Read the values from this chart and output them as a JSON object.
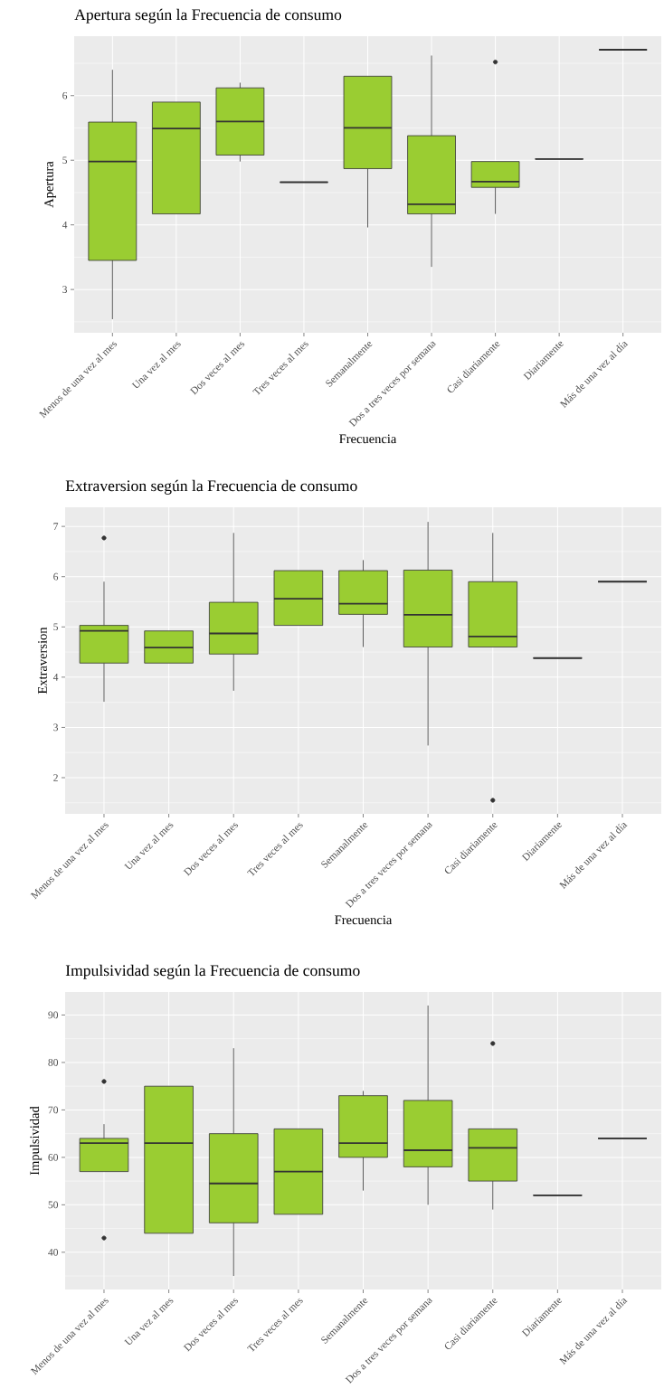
{
  "chart_data": [
    {
      "type": "box",
      "title": "Apertura según la Frecuencia de consumo",
      "xlabel": "Frecuencia",
      "ylabel": "Apertura",
      "categories": [
        "Menos de una vez al mes",
        "Una vez al mes",
        "Dos veces al mes",
        "Tres veces al mes",
        "Semanalmente",
        "Dos a tres veces por semana",
        "Casi diariamente",
        "Diariamente",
        "Más de una vez al día"
      ],
      "boxes": [
        {
          "low": 2.54,
          "q1": 3.45,
          "median": 4.98,
          "q3": 5.59,
          "high": 6.4
        },
        {
          "low": 4.17,
          "q1": 4.17,
          "median": 5.49,
          "q3": 5.9,
          "high": 5.9
        },
        {
          "low": 4.98,
          "q1": 5.08,
          "median": 5.6,
          "q3": 6.12,
          "high": 6.2
        },
        {
          "low": 4.66,
          "q1": 4.66,
          "median": 4.66,
          "q3": 4.66,
          "high": 4.66
        },
        {
          "low": 3.96,
          "q1": 4.87,
          "median": 5.5,
          "q3": 6.3,
          "high": 6.3
        },
        {
          "low": 3.35,
          "q1": 4.17,
          "median": 4.32,
          "q3": 5.38,
          "high": 6.62
        },
        {
          "low": 4.17,
          "q1": 4.58,
          "median": 4.67,
          "q3": 4.98,
          "high": 4.98,
          "outliers": [
            6.52
          ]
        },
        {
          "low": 5.02,
          "q1": 5.02,
          "median": 5.02,
          "q3": 5.02,
          "high": 5.02
        },
        {
          "low": 6.71,
          "q1": 6.71,
          "median": 6.71,
          "q3": 6.71,
          "high": 6.71
        }
      ],
      "colors": [
        "#9acd32",
        "#9acd32",
        "#9acd32",
        "#333333",
        "#9acd32",
        "#9acd32",
        "#9acd32",
        "#333333",
        "#333333"
      ],
      "ylim": [
        2.33,
        6.92
      ],
      "yticks": [
        3,
        4,
        5,
        6
      ],
      "grid": true
    },
    {
      "type": "box",
      "title": "Extraversion según la Frecuencia de consumo",
      "xlabel": "Frecuencia",
      "ylabel": "Extraversion",
      "categories": [
        "Menos de una vez al mes",
        "Una vez al mes",
        "Dos veces al mes",
        "Tres veces al mes",
        "Semanalmente",
        "Dos a tres veces por semana",
        "Casi diariamente",
        "Diariamente",
        "Más de una vez al día"
      ],
      "boxes": [
        {
          "low": 3.51,
          "q1": 4.28,
          "median": 4.92,
          "q3": 5.03,
          "high": 5.9,
          "outliers": [
            6.77
          ]
        },
        {
          "low": 4.28,
          "q1": 4.28,
          "median": 4.59,
          "q3": 4.92,
          "high": 4.92
        },
        {
          "low": 3.73,
          "q1": 4.46,
          "median": 4.87,
          "q3": 5.49,
          "high": 6.87
        },
        {
          "low": 5.03,
          "q1": 5.03,
          "median": 5.56,
          "q3": 6.12,
          "high": 6.12
        },
        {
          "low": 4.6,
          "q1": 5.25,
          "median": 5.46,
          "q3": 6.12,
          "high": 6.33
        },
        {
          "low": 2.64,
          "q1": 4.6,
          "median": 5.24,
          "q3": 6.13,
          "high": 7.09
        },
        {
          "low": 4.6,
          "q1": 4.6,
          "median": 4.81,
          "q3": 5.9,
          "high": 6.87,
          "outliers": [
            1.55
          ]
        },
        {
          "low": 4.38,
          "q1": 4.38,
          "median": 4.38,
          "q3": 4.38,
          "high": 4.38
        },
        {
          "low": 5.9,
          "q1": 5.9,
          "median": 5.9,
          "q3": 5.9,
          "high": 5.9
        }
      ],
      "colors": [
        "#9acd32",
        "#9acd32",
        "#9acd32",
        "#9acd32",
        "#9acd32",
        "#9acd32",
        "#9acd32",
        "#333333",
        "#333333"
      ],
      "ylim": [
        1.28,
        7.38
      ],
      "yticks": [
        2,
        3,
        4,
        5,
        6,
        7
      ],
      "grid": true
    },
    {
      "type": "box",
      "title": "Impulsividad según la Frecuencia de consumo",
      "ylabel": "Impulsividad",
      "categories": [
        "Menos de una vez al mes",
        "Una vez al mes",
        "Dos veces al mes",
        "Tres veces al mes",
        "Semanalmente",
        "Dos a tres veces por semana",
        "Casi diariamente",
        "Diariamente",
        "Más de una vez al día"
      ],
      "boxes": [
        {
          "low": 57,
          "q1": 57,
          "median": 63,
          "q3": 64,
          "high": 67,
          "outliers": [
            76,
            43
          ]
        },
        {
          "low": 44,
          "q1": 44,
          "median": 63,
          "q3": 75,
          "high": 75
        },
        {
          "low": 35,
          "q1": 46.2,
          "median": 54.5,
          "q3": 65,
          "high": 83
        },
        {
          "low": 48,
          "q1": 48,
          "median": 57,
          "q3": 66,
          "high": 66
        },
        {
          "low": 53,
          "q1": 60,
          "median": 63,
          "q3": 73,
          "high": 74
        },
        {
          "low": 50,
          "q1": 58,
          "median": 61.5,
          "q3": 72,
          "high": 92
        },
        {
          "low": 49,
          "q1": 55,
          "median": 62,
          "q3": 66,
          "high": 66,
          "outliers": [
            84
          ]
        },
        {
          "low": 52,
          "q1": 52,
          "median": 52,
          "q3": 52,
          "high": 52
        },
        {
          "low": 64,
          "q1": 64,
          "median": 64,
          "q3": 64,
          "high": 64
        }
      ],
      "colors": [
        "#9acd32",
        "#9acd32",
        "#9acd32",
        "#9acd32",
        "#9acd32",
        "#9acd32",
        "#9acd32",
        "#333333",
        "#333333"
      ],
      "ylim": [
        32.15,
        94.85
      ],
      "yticks": [
        40,
        50,
        60,
        70,
        80,
        90
      ],
      "grid": true
    }
  ]
}
